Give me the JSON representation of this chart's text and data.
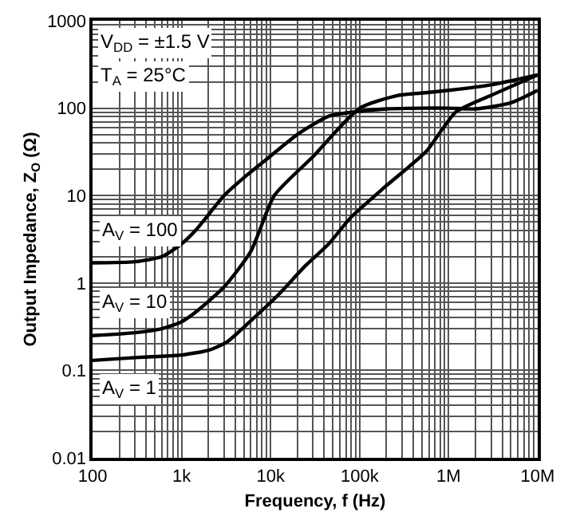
{
  "chart_data": {
    "type": "line",
    "xlabel": "Frequency, f (Hz)",
    "ylabel": "Output Impedance, Z$_{O}$ (Ω)",
    "annotations": [
      "V$_{DD}$ = ±1.5 V",
      "T$_{A}$ = 25°C"
    ],
    "log": "xy",
    "grid": true,
    "marker": "none",
    "line_style": "solid",
    "legend": false,
    "xlim": [
      100,
      10000000
    ],
    "ylim": [
      0.01,
      1000
    ],
    "xticks": [
      100,
      {
        "value": 1000,
        "label": "1k"
      },
      {
        "value": 10000,
        "label": "10k"
      },
      {
        "value": 100000,
        "label": "100k"
      },
      {
        "value": 1000000,
        "label": "1M"
      },
      {
        "value": 10000000,
        "label": "10M"
      }
    ],
    "yticks": [
      0.01,
      0.1,
      1,
      10,
      100,
      1000
    ],
    "series": [
      {
        "name": "A$_{V}$ = 100",
        "color": "#000000",
        "x": [
          100,
          300,
          600,
          1000,
          1500,
          3000,
          5000,
          9000,
          20000,
          45000,
          90000,
          200000,
          500000,
          1000000,
          2000000,
          5000000,
          10000000
        ],
        "values": [
          1.7,
          1.75,
          2.0,
          2.8,
          4.2,
          10,
          16,
          26,
          50,
          81,
          91,
          98,
          100,
          100,
          98,
          115,
          160
        ]
      },
      {
        "name": "A$_{V}$ = 10",
        "color": "#000000",
        "x": [
          100,
          300,
          600,
          1000,
          1500,
          3000,
          6000,
          11000,
          30000,
          100000,
          270000,
          550000,
          1000000,
          3000000,
          10000000
        ],
        "values": [
          0.25,
          0.27,
          0.3,
          0.36,
          0.48,
          0.9,
          2.3,
          10,
          28,
          100,
          140,
          150,
          160,
          185,
          240
        ]
      },
      {
        "name": "A$_{V}$ = 1",
        "color": "#000000",
        "x": [
          100,
          300,
          600,
          1000,
          2000,
          3200,
          6000,
          12000,
          25000,
          45000,
          78000,
          200000,
          560000,
          1200000,
          3000000,
          10000000
        ],
        "values": [
          0.13,
          0.14,
          0.145,
          0.15,
          0.17,
          0.21,
          0.37,
          0.72,
          1.6,
          2.8,
          5.5,
          13,
          32,
          90,
          140,
          240
        ]
      }
    ]
  }
}
